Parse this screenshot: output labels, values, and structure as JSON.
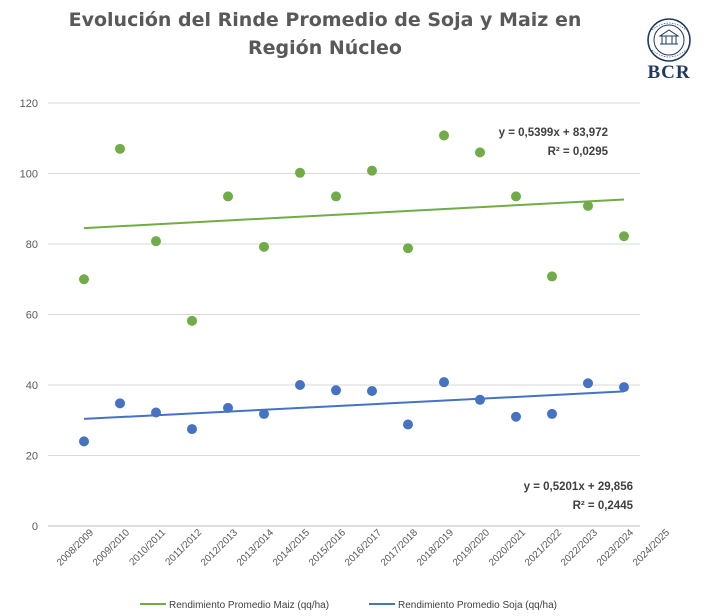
{
  "title": "Evolución del Rinde Promedio de Soja y Maiz en Región Núcleo",
  "logo": {
    "label": "BCR",
    "seal_text": "BOLSA DE COMERCIO DE ROSARIO"
  },
  "chart_data": {
    "type": "scatter",
    "categories": [
      "2008/2009",
      "2009/2010",
      "2010/2011",
      "2011/2012",
      "2012/2013",
      "2013/2014",
      "2014/2015",
      "2015/2016",
      "2016/2017",
      "2017/2018",
      "2018/2019",
      "2019/2020",
      "2020/2021",
      "2021/2022",
      "2022/2023",
      "2023/2024",
      "2024/2025"
    ],
    "ylim": [
      0,
      120
    ],
    "yticks": [
      0,
      20,
      40,
      60,
      80,
      100,
      120
    ],
    "grid": true,
    "legend_position": "bottom",
    "series": [
      {
        "name": "Rendimiento Promedio Maiz (qq/ha)",
        "color": "#70ad47",
        "values": [
          70,
          107,
          80.8,
          58.2,
          93.5,
          79.2,
          100.2,
          93.5,
          100.8,
          78.8,
          110.8,
          106,
          93.5,
          70.8,
          90.8,
          82.2
        ],
        "trend": {
          "slope": 0.5399,
          "intercept": 83.972,
          "color": "#70ad47"
        },
        "equation": "y = 0,5399x + 83,972",
        "r2": "R² = 0,0295"
      },
      {
        "name": "Rendimiento Promedio Soja (qq/ha)",
        "color": "#4472c4",
        "values": [
          24,
          34.8,
          32.2,
          27.5,
          33.5,
          31.8,
          40,
          38.5,
          38.3,
          28.8,
          40.8,
          35.8,
          31,
          31.8,
          40.5,
          39.4
        ],
        "trend": {
          "slope": 0.5201,
          "intercept": 29.856,
          "color": "#4472c4"
        },
        "equation": "y = 0,5201x + 29,856",
        "r2": "R² = 0,2445"
      }
    ]
  }
}
